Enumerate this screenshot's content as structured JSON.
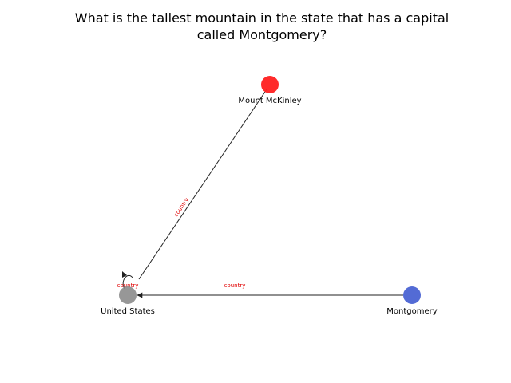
{
  "title": {
    "line1": "What is the tallest mountain in the state that has a capital",
    "line2": "called Montgomery?"
  },
  "nodes": {
    "mount_mckinley": {
      "label": "Mount McKinley",
      "color": "#ff2020"
    },
    "united_states": {
      "label": "United States",
      "color": "#8c8c8c"
    },
    "montgomery": {
      "label": "Montgomery",
      "color": "#4a63d3"
    }
  },
  "edges": {
    "mckinley_to_us": {
      "label": "country"
    },
    "montgomery_to_us": {
      "label": "country"
    },
    "us_self_loop": {
      "label": "country"
    }
  },
  "colors": {
    "edge": "#222222",
    "edge_label": "#e00000"
  }
}
